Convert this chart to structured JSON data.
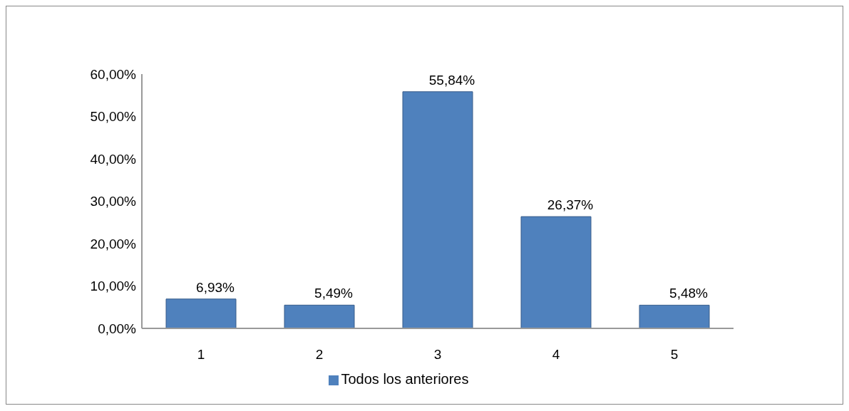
{
  "chart_data": {
    "type": "bar",
    "categories": [
      "1",
      "2",
      "3",
      "4",
      "5"
    ],
    "series": [
      {
        "name": "Todos los anteriores",
        "color": "#4f81bd",
        "values": [
          6.93,
          5.49,
          55.84,
          26.37,
          5.48
        ],
        "value_labels": [
          "6,93%",
          "5,49%",
          "55,84%",
          "26,37%",
          "5,48%"
        ]
      }
    ],
    "ylim": [
      0,
      60
    ],
    "yticks": [
      {
        "value": 0,
        "label": "0,00%"
      },
      {
        "value": 10,
        "label": "10,00%"
      },
      {
        "value": 20,
        "label": "20,00%"
      },
      {
        "value": 30,
        "label": "30,00%"
      },
      {
        "value": 40,
        "label": "40,00%"
      },
      {
        "value": 50,
        "label": "50,00%"
      },
      {
        "value": 60,
        "label": "60,00%"
      }
    ],
    "legend": "bottom"
  }
}
